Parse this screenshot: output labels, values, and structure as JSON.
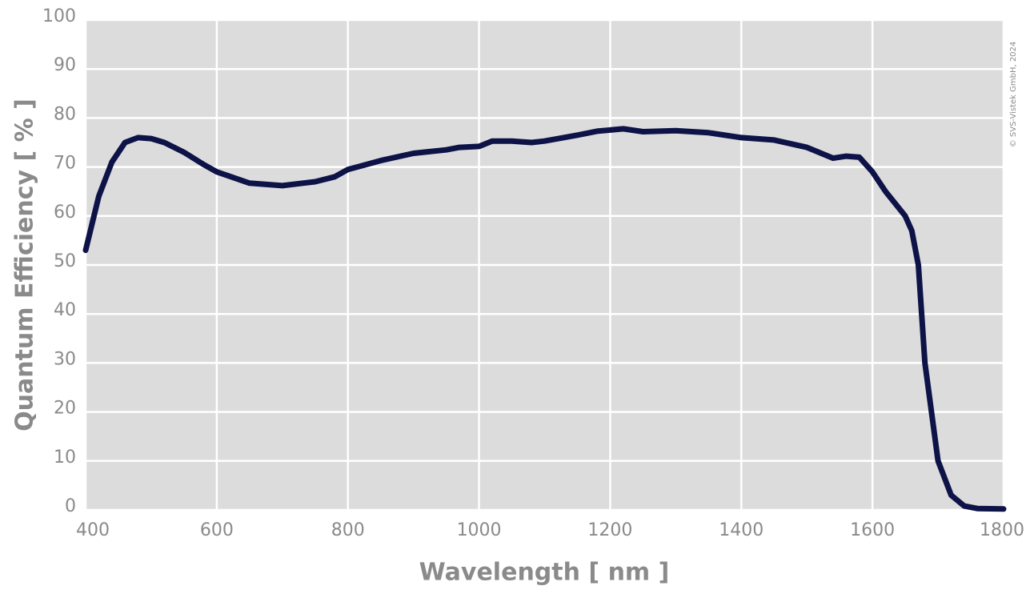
{
  "chart_data": {
    "type": "line",
    "x_label": "Wavelength [ nm ]",
    "y_label": "Quantum Efficiency [ % ]",
    "copyright": "© SVS-Vistek GmbH, 2024",
    "x": [
      400,
      420,
      440,
      460,
      480,
      500,
      520,
      550,
      580,
      600,
      650,
      700,
      750,
      780,
      800,
      850,
      900,
      950,
      970,
      1000,
      1020,
      1050,
      1080,
      1100,
      1150,
      1180,
      1220,
      1250,
      1300,
      1350,
      1400,
      1450,
      1500,
      1540,
      1560,
      1580,
      1600,
      1620,
      1650,
      1660,
      1670,
      1680,
      1690,
      1700,
      1720,
      1740,
      1760,
      1800
    ],
    "series": [
      {
        "name": "Quantum Efficiency",
        "color": "#0d1247",
        "values": [
          53,
          64,
          71,
          75,
          76,
          75.8,
          75,
          73,
          70.5,
          69,
          66.7,
          66.2,
          67,
          68,
          69.5,
          71.3,
          72.8,
          73.5,
          74,
          74.2,
          75.3,
          75.3,
          75,
          75.3,
          76.5,
          77.3,
          77.8,
          77.2,
          77.4,
          77,
          76,
          75.5,
          74,
          71.8,
          72.2,
          72,
          69,
          65,
          60,
          57,
          50,
          30,
          20,
          10,
          3,
          0.8,
          0.3,
          0.2
        ]
      }
    ],
    "xlim": [
      400,
      1800
    ],
    "xticks": [
      400,
      600,
      800,
      1000,
      1200,
      1400,
      1600,
      1800
    ],
    "ylim": [
      0,
      100
    ],
    "yticks": [
      0,
      10,
      20,
      30,
      40,
      50,
      60,
      70,
      80,
      90,
      100
    ],
    "grid": true
  }
}
